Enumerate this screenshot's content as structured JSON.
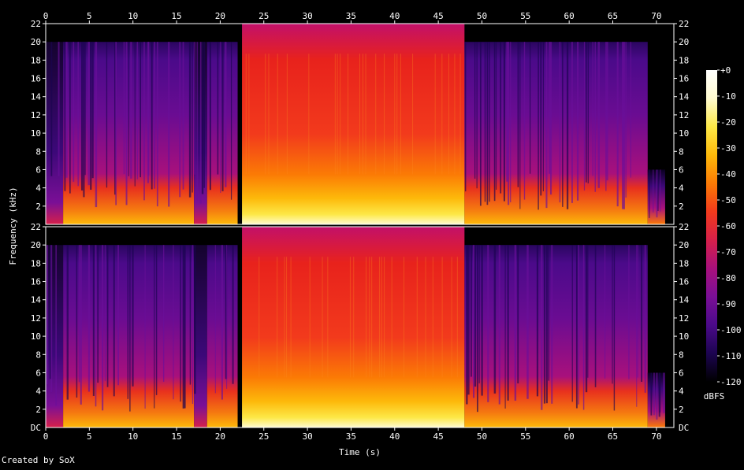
{
  "chart_data": {
    "type": "heatmap",
    "title": "",
    "xlabel": "Time (s)",
    "ylabel": "Frequency (kHz)",
    "xlim": [
      0,
      72
    ],
    "ylim": [
      0,
      22
    ],
    "x_ticks": [
      "0",
      "5",
      "10",
      "15",
      "20",
      "25",
      "30",
      "35",
      "40",
      "45",
      "50",
      "55",
      "60",
      "65",
      "70"
    ],
    "x_tick_values": [
      0,
      5,
      10,
      15,
      20,
      25,
      30,
      35,
      40,
      45,
      50,
      55,
      60,
      65,
      70
    ],
    "y_ticks": [
      "22",
      "20",
      "18",
      "16",
      "14",
      "12",
      "10",
      "8",
      "6",
      "4",
      "2"
    ],
    "y_tick_values": [
      22,
      20,
      18,
      16,
      14,
      12,
      10,
      8,
      6,
      4,
      2
    ],
    "bottom_channel_zero_label": "DC",
    "channels": [
      {
        "channel": 1,
        "position": "top"
      },
      {
        "channel": 2,
        "position": "bottom"
      }
    ],
    "colorbar": {
      "label": "dBFS",
      "ticks": [
        "+0",
        "-10",
        "-20",
        "-30",
        "-40",
        "-50",
        "-60",
        "-70",
        "-80",
        "-90",
        "-100",
        "-110",
        "-120"
      ],
      "tick_values": [
        0,
        -10,
        -20,
        -30,
        -40,
        -50,
        -60,
        -70,
        -80,
        -90,
        -100,
        -110,
        -120
      ],
      "range": [
        -120,
        0
      ],
      "colors": [
        "#000000",
        "#1c0450",
        "#4b0a8a",
        "#7a0f96",
        "#a8107c",
        "#d6204a",
        "#f23a1c",
        "#fb7a05",
        "#fdb90a",
        "#fde847",
        "#fffbd0",
        "#ffffff"
      ]
    },
    "segments": [
      {
        "t_start": 0,
        "t_end": 2,
        "max_freq_khz": 20,
        "level": "quiet"
      },
      {
        "t_start": 2,
        "t_end": 17,
        "max_freq_khz": 20,
        "level": "medium"
      },
      {
        "t_start": 17,
        "t_end": 18.5,
        "max_freq_khz": 20,
        "level": "quiet"
      },
      {
        "t_start": 18.5,
        "t_end": 22,
        "max_freq_khz": 20,
        "level": "medium"
      },
      {
        "t_start": 22.5,
        "t_end": 48,
        "max_freq_khz": 22,
        "level": "loud"
      },
      {
        "t_start": 48,
        "t_end": 69,
        "max_freq_khz": 20,
        "level": "medium"
      },
      {
        "t_start": 69,
        "t_end": 71,
        "max_freq_khz": 6,
        "level": "fade"
      }
    ]
  },
  "footer": {
    "credit": "Created by SoX"
  }
}
